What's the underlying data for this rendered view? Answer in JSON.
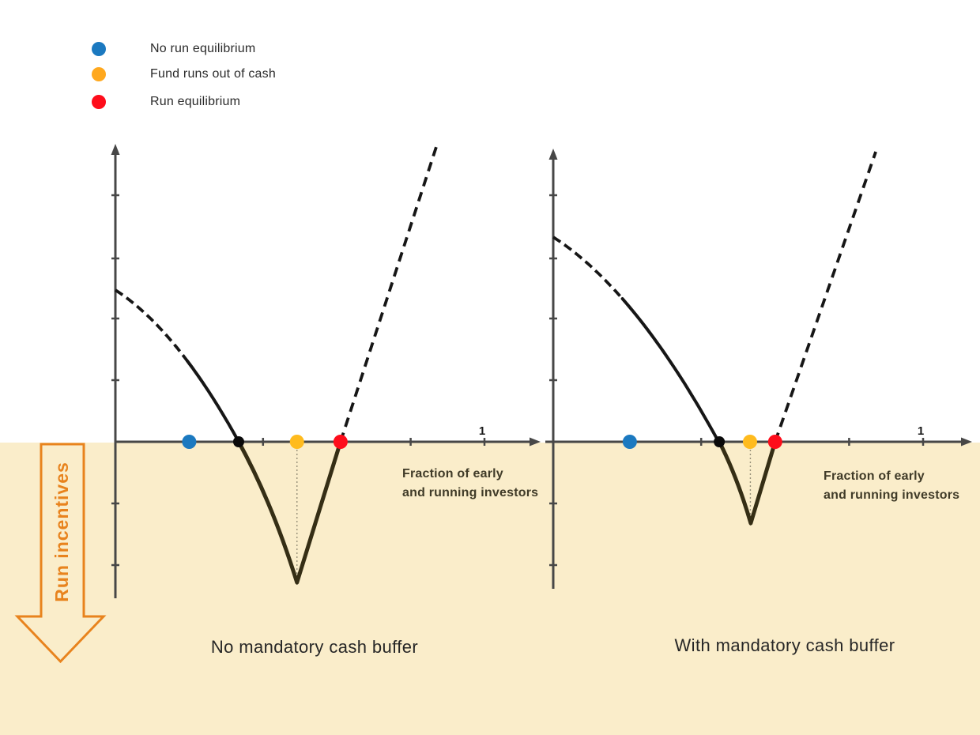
{
  "colors": {
    "background_top": "#FFFFFF",
    "background_run_region": "#FAEDCA",
    "axis": "#474747",
    "curve": "#161616",
    "curve_below_axis": "#352E15",
    "drop_line": "#97917A",
    "tick_label": "#1A1A1A",
    "run_arrow": "#E8831D"
  },
  "legend": {
    "items": [
      {
        "label": "No run equilibrium",
        "color": "#1B79C0"
      },
      {
        "label": "Fund runs out of cash",
        "color": "#FFA81E"
      },
      {
        "label": "Run equilibrium",
        "color": "#FE0D1B"
      }
    ]
  },
  "run_arrow": {
    "label": "Run incentives"
  },
  "chart_data": [
    {
      "type": "line",
      "title": "No mandatory cash buffer",
      "xlabel": "Fraction of early\nand running investors",
      "x_axis": {
        "min": 0,
        "max": 1.15,
        "ticks": [
          0.2,
          0.4,
          0.6,
          0.8,
          1.0
        ],
        "labeled_tick": {
          "x": 1.0,
          "label": "1"
        }
      },
      "y_axis": {
        "min": -1.97,
        "max": 3.77,
        "ticks": [
          -1.56,
          -0.78,
          0.78,
          1.56,
          2.32,
          3.12
        ]
      },
      "payoff_curve": {
        "start_value": 1.92,
        "slope": 3.0,
        "curvature": 8.22,
        "zero_crossing_x": 0.334,
        "dashed_until_x": 0.195
      },
      "v_shape": {
        "from_x": 0.334,
        "ctrl": [
          0.424,
          -0.764
        ],
        "bottom_x": 0.492,
        "bottom_value": -1.78,
        "to_x": 0.61
      },
      "upward_dashed_line": {
        "from_x": 0.61,
        "to_x": 0.87,
        "to_value": 3.74
      },
      "drop_line_x": 0.492,
      "equilibrium_points": [
        {
          "name": "no-run-equilibrium",
          "x": 0.2,
          "color": "#1B79C0",
          "radius": 9
        },
        {
          "name": "zero-crossing",
          "x": 0.334,
          "color": "#0A0A0A",
          "radius": 7
        },
        {
          "name": "fund-runs-out-of-cash",
          "x": 0.492,
          "color": "#FFBB1E",
          "radius": 9
        },
        {
          "name": "run-equilibrium",
          "x": 0.61,
          "color": "#FE0D1B",
          "radius": 9
        }
      ]
    },
    {
      "type": "line",
      "title": "With mandatory cash buffer",
      "xlabel": "Fraction of early\nand running investors",
      "x_axis": {
        "min": -0.02,
        "max": 1.13,
        "ticks": [
          0.2,
          0.4,
          0.6,
          0.8,
          1.0
        ],
        "labeled_tick": {
          "x": 1.0,
          "label": "1"
        }
      },
      "y_axis": {
        "min": -1.86,
        "max": 3.71,
        "ticks": [
          -1.56,
          -0.78,
          0.78,
          1.56,
          2.32,
          3.12
        ]
      },
      "payoff_curve": {
        "start_value": 2.59,
        "slope": 3.0,
        "curvature": 6.25,
        "zero_crossing_x": 0.449,
        "dashed_until_x": 0.192
      },
      "v_shape": {
        "from_x": 0.449,
        "ctrl": [
          0.497,
          -0.44
        ],
        "bottom_x": 0.534,
        "bottom_value": -1.03,
        "to_x": 0.6
      },
      "upward_dashed_line": {
        "from_x": 0.6,
        "to_x": 0.872,
        "to_value": 3.67
      },
      "drop_line_x": 0.533,
      "equilibrium_points": [
        {
          "name": "no-run-equilibrium",
          "x": 0.207,
          "color": "#1B79C0",
          "radius": 9
        },
        {
          "name": "zero-crossing",
          "x": 0.449,
          "color": "#0A0A0A",
          "radius": 7
        },
        {
          "name": "fund-runs-out-of-cash",
          "x": 0.532,
          "color": "#FFBB1E",
          "radius": 9
        },
        {
          "name": "run-equilibrium",
          "x": 0.6,
          "color": "#FE0D1B",
          "radius": 9
        }
      ]
    }
  ]
}
